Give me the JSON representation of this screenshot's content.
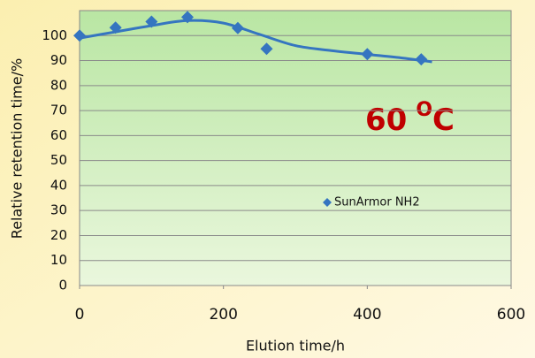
{
  "chart_data": {
    "type": "scatter",
    "xlabel": "Elution time/h",
    "ylabel": "Relative retention time/%",
    "xlim": [
      0,
      600
    ],
    "xticks": [
      0,
      200,
      400,
      600
    ],
    "ylim": [
      0,
      110
    ],
    "yticks": [
      0,
      10,
      20,
      30,
      40,
      50,
      60,
      70,
      80,
      90,
      100
    ],
    "grid": true,
    "legend": "center-right",
    "series": [
      {
        "name": "SunArmor NH2",
        "color": "#3575c0",
        "x": [
          0,
          50,
          100,
          150,
          220,
          260,
          400,
          475
        ],
        "values": [
          100,
          103.2,
          105.6,
          107.4,
          103,
          94.7,
          92.6,
          90.5
        ]
      }
    ],
    "trendline": {
      "color": "#3575c0",
      "x": [
        0,
        50,
        100,
        150,
        200,
        250,
        300,
        350,
        400,
        450,
        490
      ],
      "values": [
        99,
        101.5,
        104,
        106,
        105,
        100.5,
        96,
        94,
        92.5,
        91,
        89.5
      ]
    },
    "annotation": {
      "text": "60",
      "superscript": "O",
      "unit": "C",
      "color": "#c00000"
    }
  }
}
